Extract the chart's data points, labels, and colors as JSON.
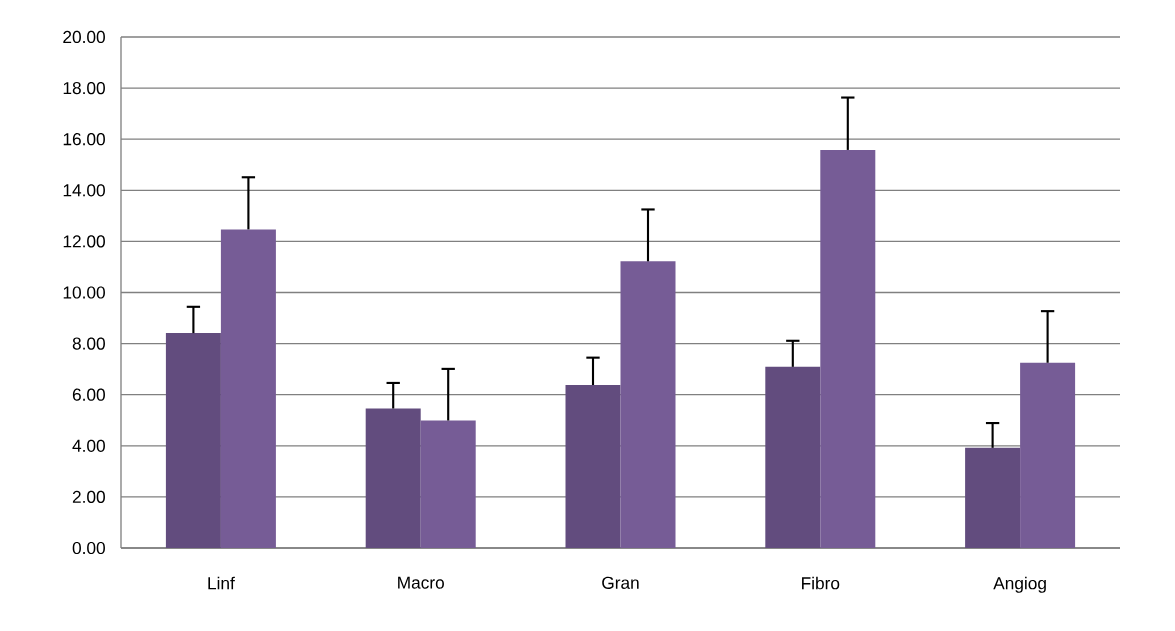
{
  "chart_data": {
    "type": "bar",
    "categories": [
      "Linf",
      "Macro",
      "Gran",
      "Fibro",
      "Angiog"
    ],
    "series": [
      {
        "color": "#624c7e",
        "values": [
          8.41,
          5.46,
          6.38,
          7.09,
          3.92
        ],
        "errors": [
          [
            8.41,
            9.44
          ],
          [
            5.46,
            6.46
          ],
          [
            6.38,
            7.45
          ],
          [
            7.09,
            8.11
          ],
          [
            3.92,
            4.89
          ]
        ]
      },
      {
        "color": "#765c96",
        "values": [
          12.47,
          4.99,
          11.22,
          15.58,
          7.25
        ],
        "errors": [
          [
            12.47,
            14.51
          ],
          [
            4.99,
            7.01
          ],
          [
            11.22,
            13.25
          ],
          [
            15.58,
            17.63
          ],
          [
            7.25,
            9.27
          ]
        ]
      }
    ],
    "ylim": [
      0,
      20
    ],
    "yticks": [
      {
        "value": 0,
        "label": "0.00"
      },
      {
        "value": 2,
        "label": "2.00"
      },
      {
        "value": 4,
        "label": "4.00"
      },
      {
        "value": 6,
        "label": "6.00"
      },
      {
        "value": 8,
        "label": "8.00"
      },
      {
        "value": 10,
        "label": "10.00"
      },
      {
        "value": 12,
        "label": "12.00"
      },
      {
        "value": 14,
        "label": "14.00"
      },
      {
        "value": 16,
        "label": "16.00"
      },
      {
        "value": 18,
        "label": "18.00"
      },
      {
        "value": 20,
        "label": "20.00"
      }
    ],
    "grid": "y"
  }
}
